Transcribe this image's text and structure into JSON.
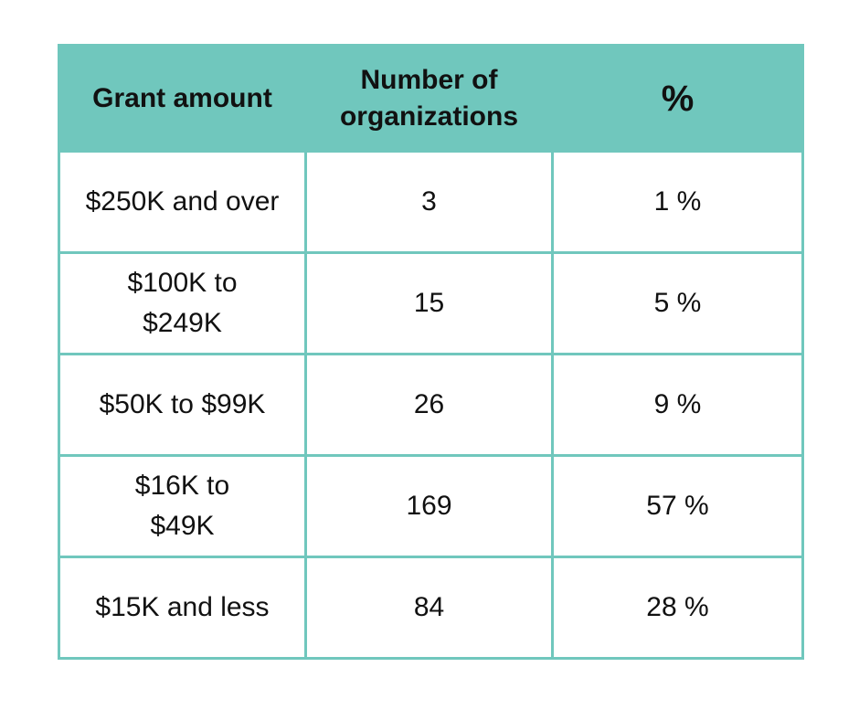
{
  "table": {
    "headers": {
      "grant_amount": "Grant amount",
      "number_of_organizations": "Number of organizations",
      "percent": "%"
    },
    "rows": [
      {
        "grant_amount": "$250K and over",
        "count": "3",
        "percent": "1 %"
      },
      {
        "grant_amount": "$100K to $249K",
        "count": "15",
        "percent": "5 %"
      },
      {
        "grant_amount": "$50K to $99K",
        "count": "26",
        "percent": "9 %"
      },
      {
        "grant_amount": "$16K to $49K",
        "count": "169",
        "percent": "57 %"
      },
      {
        "grant_amount": "$15K and less",
        "count": "84",
        "percent": "28 %"
      }
    ]
  },
  "colors": {
    "header_background": "#70c7bd",
    "border": "#70c7bd",
    "text": "#111111"
  }
}
